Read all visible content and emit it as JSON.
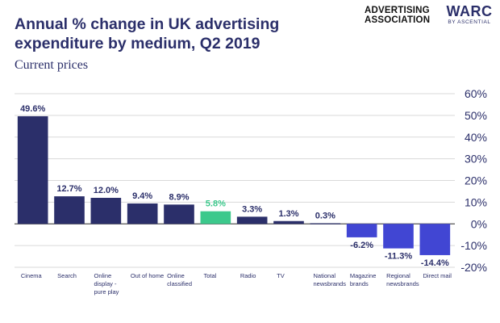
{
  "header": {
    "title_line1": "Annual % change in UK advertising",
    "title_line2": "expenditure by medium, Q2 2019",
    "subtitle": "Current prices"
  },
  "logos": {
    "aa_line1": "ADVERTISING",
    "aa_line2": "ASSOCIATION",
    "warc": "WARC",
    "warc_sub": "BY ASCENTIAL"
  },
  "colors": {
    "positive": "#2b2f6a",
    "negative": "#4146d3",
    "highlight": "#3cc98c",
    "grid": "#d9d9d9",
    "text": "#2b2f6a"
  },
  "chart_data": {
    "type": "bar",
    "title": "Annual % change in UK advertising expenditure by medium, Q2 2019",
    "subtitle": "Current prices",
    "categories": [
      [
        "Cinema"
      ],
      [
        "Search"
      ],
      [
        "Online",
        "display -",
        "pure play"
      ],
      [
        "Out of home"
      ],
      [
        "Online",
        "classified"
      ],
      [
        "Total"
      ],
      [
        "Radio"
      ],
      [
        "TV"
      ],
      [
        "National",
        "newsbrands"
      ],
      [
        "Magazine",
        "brands"
      ],
      [
        "Regional",
        "newsbrands"
      ],
      [
        "Direct mail"
      ]
    ],
    "values": [
      49.6,
      12.7,
      12.0,
      9.4,
      8.9,
      5.8,
      3.3,
      1.3,
      0.3,
      -6.2,
      -11.3,
      -14.4
    ],
    "labels": [
      "49.6%",
      "12.7%",
      "12.0%",
      "9.4%",
      "8.9%",
      "5.8%",
      "3.3%",
      "1.3%",
      "0.3%",
      "-6.2%",
      "-11.3%",
      "-14.4%"
    ],
    "highlight_index": 5,
    "ylim": [
      -20,
      60
    ],
    "yticks": [
      60,
      50,
      40,
      30,
      20,
      10,
      0,
      -10,
      -20
    ],
    "ytick_labels": [
      "60%",
      "50%",
      "40%",
      "30%",
      "20%",
      "10%",
      "0%",
      "-10%",
      "-20%"
    ],
    "xlabel": "",
    "ylabel": "",
    "grid": true,
    "y_axis_side": "right"
  }
}
